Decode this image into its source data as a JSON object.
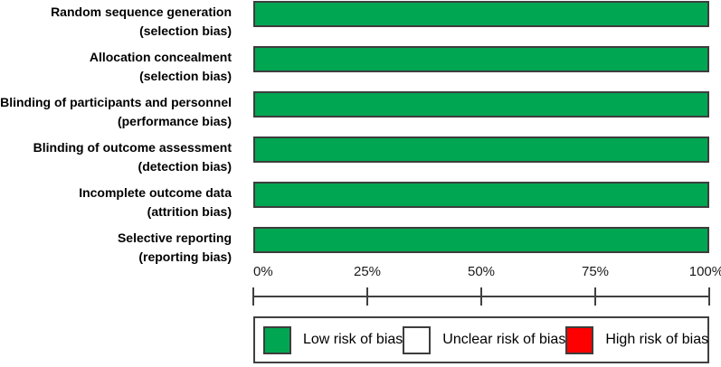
{
  "chart_data": {
    "type": "bar",
    "orientation": "horizontal",
    "stacked": true,
    "title": "",
    "xlabel": "",
    "ylabel": "",
    "categories": [
      "Random sequence generation (selection bias)",
      "Allocation concealment (selection bias)",
      "Blinding of participants and personnel (performance bias)",
      "Blinding of outcome assessment (detection bias)",
      "Incomplete outcome data (attrition bias)",
      "Selective reporting (reporting bias)"
    ],
    "series": [
      {
        "name": "Low risk of bias",
        "color": "#00a651",
        "values": [
          100,
          100,
          100,
          100,
          100,
          100
        ]
      },
      {
        "name": "Unclear risk of bias",
        "color": "#ffffff",
        "values": [
          0,
          0,
          0,
          0,
          0,
          0
        ]
      },
      {
        "name": "High risk of bias",
        "color": "#ff0000",
        "values": [
          0,
          0,
          0,
          0,
          0,
          0
        ]
      }
    ],
    "xlim": [
      0,
      100
    ],
    "x_tick_labels": [
      "0%",
      "25%",
      "50%",
      "75%",
      "100%"
    ],
    "grid": false,
    "legend_position": "bottom"
  },
  "rows": [
    {
      "line1": "Random sequence generation",
      "line2": "(selection bias)"
    },
    {
      "line1": "Allocation concealment",
      "line2": "(selection bias)"
    },
    {
      "line1": "Blinding of participants and personnel",
      "line2": "(performance bias)"
    },
    {
      "line1": "Blinding of outcome assessment",
      "line2": "(detection bias)"
    },
    {
      "line1": "Incomplete outcome data",
      "line2": "(attrition bias)"
    },
    {
      "line1": "Selective reporting",
      "line2": "(reporting bias)"
    }
  ],
  "axis": {
    "tick_labels": [
      "0%",
      "25%",
      "50%",
      "75%",
      "100%"
    ]
  },
  "legend": {
    "items": [
      {
        "label": "Low risk of bias",
        "color": "#00a651"
      },
      {
        "label": "Unclear risk of bias",
        "color": "#ffffff"
      },
      {
        "label": "High risk of bias",
        "color": "#ff0000"
      }
    ]
  },
  "colors": {
    "low_risk": "#00a651",
    "unclear_risk": "#ffffff",
    "high_risk": "#ff0000",
    "bar_border": "#3d3d3d",
    "axis": "#404040"
  }
}
